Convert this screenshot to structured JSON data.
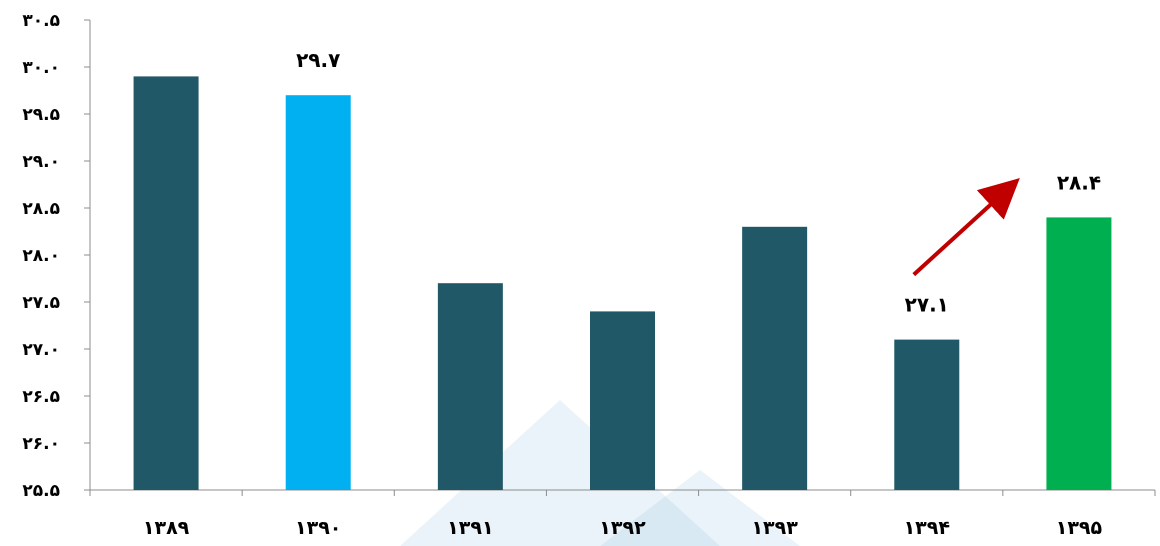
{
  "chart_data": {
    "type": "bar",
    "title": "",
    "xlabel": "",
    "ylabel": "",
    "categories": [
      "۱۳۸۹",
      "۱۳۹۰",
      "۱۳۹۱",
      "۱۳۹۲",
      "۱۳۹۳",
      "۱۳۹۴",
      "۱۳۹۵"
    ],
    "values": [
      29.9,
      29.7,
      27.7,
      27.4,
      28.3,
      27.1,
      28.4
    ],
    "bar_colors": [
      "#215868",
      "#00b0f0",
      "#215868",
      "#215868",
      "#215868",
      "#215868",
      "#00b050"
    ],
    "data_labels": [
      "",
      "۲۹.۷",
      "",
      "",
      "",
      "۲۷.۱",
      "۲۸.۴"
    ],
    "ylim": [
      25.5,
      30.5
    ],
    "yticks": [
      25.5,
      26.0,
      26.5,
      27.0,
      27.5,
      28.0,
      28.5,
      29.0,
      29.5,
      30.0,
      30.5
    ],
    "ytick_labels": [
      "۲۵.۵",
      "۲۶.۰",
      "۲۶.۵",
      "۲۷.۰",
      "۲۷.۵",
      "۲۸.۰",
      "۲۸.۵",
      "۲۹.۰",
      "۲۹.۵",
      "۳۰.۰",
      "۳۰.۵"
    ],
    "grid": false,
    "legend": "none",
    "annotations": [
      {
        "type": "arrow",
        "from_category": "۱۳۹۴",
        "to_category": "۱۳۹۵",
        "color": "#c00000"
      }
    ]
  }
}
